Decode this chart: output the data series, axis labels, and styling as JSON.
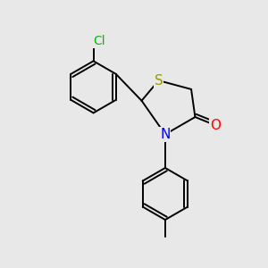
{
  "background_color": "#e8e8e8",
  "bond_color": "#000000",
  "atom_colors": {
    "S": "#999900",
    "N": "#0000ff",
    "O": "#ff0000",
    "Cl": "#00bb00",
    "C": "#000000"
  },
  "font_size_atoms": 11,
  "line_width": 1.4,
  "figsize": [
    3.0,
    3.0
  ],
  "dpi": 100
}
